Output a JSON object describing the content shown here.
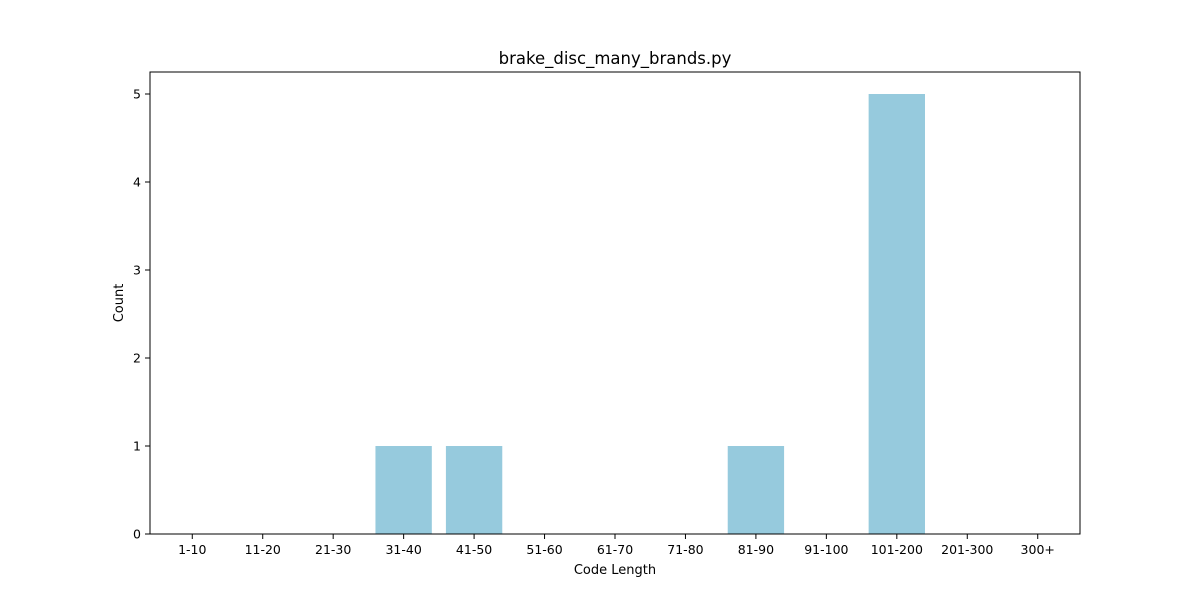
{
  "chart_data": {
    "type": "bar",
    "title": "brake_disc_many_brands.py",
    "xlabel": "Code Length",
    "ylabel": "Count",
    "categories": [
      "1-10",
      "11-20",
      "21-30",
      "31-40",
      "41-50",
      "51-60",
      "61-70",
      "71-80",
      "81-90",
      "91-100",
      "101-200",
      "201-300",
      "300+"
    ],
    "values": [
      0,
      0,
      0,
      1,
      1,
      0,
      0,
      0,
      1,
      0,
      5,
      0,
      0
    ],
    "ylim": [
      0,
      5.25
    ],
    "yticks": [
      0,
      1,
      2,
      3,
      4,
      5
    ],
    "grid": false,
    "legend": "none",
    "bar_color": "#96cadd"
  }
}
